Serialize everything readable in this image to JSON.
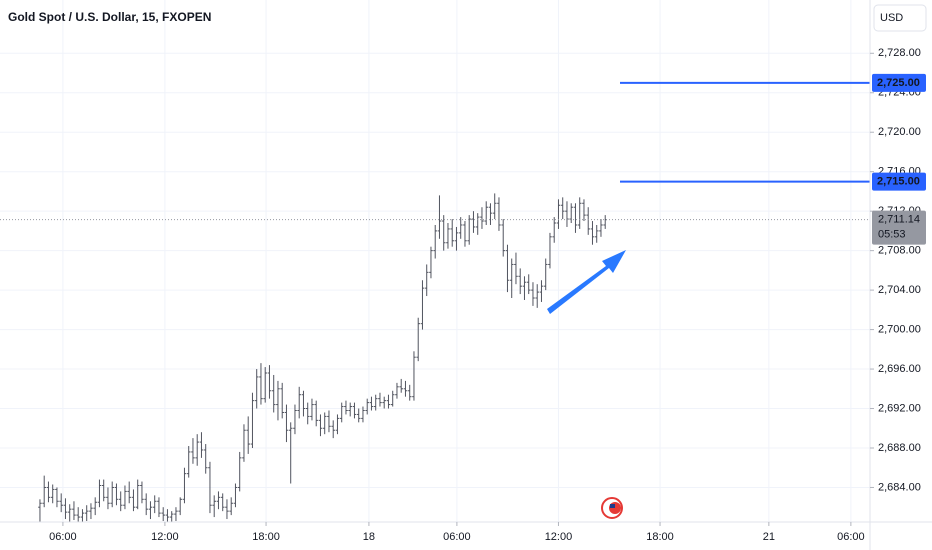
{
  "chart_data": {
    "type": "ohlc",
    "title": "Gold Spot / U.S. Dollar, 15, FXOPEN",
    "currency": "USD",
    "color": "#50535e",
    "grid": true,
    "ylim": [
      2680.5,
      2733.4
    ],
    "yticks": [
      {
        "value": 2684,
        "label": "2,684.00"
      },
      {
        "value": 2688,
        "label": "2,688.00"
      },
      {
        "value": 2692,
        "label": "2,692.00"
      },
      {
        "value": 2696,
        "label": "2,696.00"
      },
      {
        "value": 2700,
        "label": "2,700.00"
      },
      {
        "value": 2704,
        "label": "2,704.00"
      },
      {
        "value": 2708,
        "label": "2,708.00"
      },
      {
        "value": 2712,
        "label": "2,712.00"
      },
      {
        "value": 2716,
        "label": "2,716.00"
      },
      {
        "value": 2720,
        "label": "2,720.00"
      },
      {
        "value": 2724,
        "label": "2,724.00"
      },
      {
        "value": 2728,
        "label": "2,728.00"
      }
    ],
    "xlim": [
      -9.4,
      195.3
    ],
    "xticks": [
      {
        "value": 5.4,
        "label": "06:00"
      },
      {
        "value": 29.4,
        "label": "12:00"
      },
      {
        "value": 53.2,
        "label": "18:00"
      },
      {
        "value": 77.4,
        "label": "18"
      },
      {
        "value": 98.1,
        "label": "06:00"
      },
      {
        "value": 122,
        "label": "12:00"
      },
      {
        "value": 145.9,
        "label": "18:00"
      },
      {
        "value": 171.5,
        "label": "21"
      },
      {
        "value": 190.8,
        "label": "06:00"
      }
    ],
    "hlines": [
      {
        "value": 2725,
        "label": "2,725.00",
        "color": "#2962ff"
      },
      {
        "value": 2715,
        "label": "2,715.00",
        "color": "#2962ff"
      }
    ],
    "last_price": {
      "value": 2711.14,
      "label": "2,711.14",
      "countdown": "05:53"
    },
    "ohlc": [
      [
        2682.0,
        2682.8,
        2680.5,
        2682.4
      ],
      [
        2682.4,
        2685.2,
        2682.0,
        2684.0
      ],
      [
        2684.0,
        2684.6,
        2682.5,
        2683.0
      ],
      [
        2683.0,
        2684.3,
        2682.4,
        2683.8
      ],
      [
        2683.8,
        2684.0,
        2682.0,
        2682.6
      ],
      [
        2682.6,
        2683.4,
        2681.5,
        2682.2
      ],
      [
        2682.2,
        2682.9,
        2680.8,
        2681.5
      ],
      [
        2681.5,
        2682.3,
        2680.5,
        2681.8
      ],
      [
        2681.8,
        2682.6,
        2680.7,
        2681.2
      ],
      [
        2681.2,
        2682.0,
        2680.5,
        2681.0
      ],
      [
        2681.0,
        2681.8,
        2680.5,
        2681.4
      ],
      [
        2681.4,
        2682.2,
        2680.6,
        2681.6
      ],
      [
        2681.6,
        2682.4,
        2680.8,
        2681.9
      ],
      [
        2681.9,
        2683.0,
        2681.2,
        2682.5
      ],
      [
        2682.5,
        2684.8,
        2682.0,
        2684.2
      ],
      [
        2684.2,
        2684.8,
        2682.6,
        2683.0
      ],
      [
        2683.0,
        2684.0,
        2681.8,
        2682.4
      ],
      [
        2682.4,
        2684.6,
        2682.0,
        2684.0
      ],
      [
        2684.0,
        2684.4,
        2682.2,
        2682.8
      ],
      [
        2682.8,
        2683.6,
        2681.6,
        2682.2
      ],
      [
        2682.2,
        2684.2,
        2681.8,
        2683.6
      ],
      [
        2683.6,
        2684.6,
        2682.4,
        2683.0
      ],
      [
        2683.0,
        2683.8,
        2681.6,
        2682.0
      ],
      [
        2682.0,
        2684.8,
        2681.8,
        2684.2
      ],
      [
        2684.2,
        2684.6,
        2682.4,
        2682.8
      ],
      [
        2682.8,
        2683.4,
        2681.2,
        2681.8
      ],
      [
        2681.8,
        2682.6,
        2680.8,
        2682.0
      ],
      [
        2682.0,
        2683.2,
        2681.4,
        2682.6
      ],
      [
        2682.6,
        2683.0,
        2681.0,
        2681.4
      ],
      [
        2681.4,
        2682.0,
        2680.6,
        2681.2
      ],
      [
        2681.2,
        2681.8,
        2680.5,
        2681.0
      ],
      [
        2681.0,
        2681.6,
        2680.5,
        2681.3
      ],
      [
        2681.3,
        2682.0,
        2680.6,
        2681.6
      ],
      [
        2681.6,
        2683.0,
        2681.2,
        2682.8
      ],
      [
        2682.8,
        2686.0,
        2682.4,
        2685.4
      ],
      [
        2685.4,
        2688.2,
        2685.0,
        2687.6
      ],
      [
        2687.6,
        2689.0,
        2686.4,
        2687.0
      ],
      [
        2687.0,
        2689.4,
        2686.2,
        2688.6
      ],
      [
        2688.6,
        2689.6,
        2687.0,
        2687.8
      ],
      [
        2687.8,
        2688.4,
        2685.4,
        2686.0
      ],
      [
        2686.0,
        2686.6,
        2681.4,
        2682.2
      ],
      [
        2682.2,
        2683.2,
        2681.0,
        2682.6
      ],
      [
        2682.6,
        2683.6,
        2681.8,
        2683.0
      ],
      [
        2683.0,
        2683.4,
        2681.6,
        2682.0
      ],
      [
        2682.0,
        2682.8,
        2680.8,
        2681.6
      ],
      [
        2681.6,
        2683.0,
        2681.2,
        2682.4
      ],
      [
        2682.4,
        2684.4,
        2682.0,
        2684.0
      ],
      [
        2684.0,
        2687.6,
        2683.6,
        2687.0
      ],
      [
        2687.0,
        2690.4,
        2686.6,
        2689.8
      ],
      [
        2689.8,
        2691.2,
        2687.4,
        2688.4
      ],
      [
        2688.4,
        2693.6,
        2688.0,
        2692.8
      ],
      [
        2692.8,
        2696.0,
        2692.0,
        2695.2
      ],
      [
        2695.2,
        2696.6,
        2692.4,
        2693.0
      ],
      [
        2693.0,
        2696.2,
        2692.6,
        2695.6
      ],
      [
        2695.6,
        2696.4,
        2693.0,
        2693.8
      ],
      [
        2693.8,
        2695.4,
        2691.6,
        2692.4
      ],
      [
        2692.4,
        2694.8,
        2690.8,
        2694.0
      ],
      [
        2694.0,
        2694.6,
        2691.0,
        2691.6
      ],
      [
        2691.6,
        2692.4,
        2688.6,
        2689.8
      ],
      [
        2689.8,
        2690.6,
        2684.4,
        2690.0
      ],
      [
        2690.0,
        2692.4,
        2689.4,
        2691.8
      ],
      [
        2691.8,
        2694.2,
        2691.0,
        2693.4
      ],
      [
        2693.4,
        2693.8,
        2691.2,
        2692.0
      ],
      [
        2692.0,
        2692.6,
        2690.4,
        2691.2
      ],
      [
        2691.2,
        2693.0,
        2690.8,
        2692.4
      ],
      [
        2692.4,
        2692.8,
        2690.2,
        2690.8
      ],
      [
        2690.8,
        2691.4,
        2689.2,
        2690.0
      ],
      [
        2690.0,
        2691.6,
        2689.4,
        2691.2
      ],
      [
        2691.2,
        2691.8,
        2689.6,
        2690.2
      ],
      [
        2690.2,
        2690.8,
        2689.0,
        2689.8
      ],
      [
        2689.8,
        2691.4,
        2689.4,
        2691.0
      ],
      [
        2691.0,
        2692.6,
        2690.6,
        2692.2
      ],
      [
        2692.2,
        2692.8,
        2691.4,
        2691.8
      ],
      [
        2691.8,
        2692.6,
        2691.2,
        2692.2
      ],
      [
        2692.2,
        2692.6,
        2691.0,
        2691.4
      ],
      [
        2691.4,
        2692.0,
        2690.6,
        2691.0
      ],
      [
        2691.0,
        2692.2,
        2690.6,
        2691.8
      ],
      [
        2691.8,
        2693.0,
        2691.4,
        2692.6
      ],
      [
        2692.6,
        2693.2,
        2691.8,
        2692.2
      ],
      [
        2692.2,
        2693.4,
        2691.8,
        2693.0
      ],
      [
        2693.0,
        2693.6,
        2692.2,
        2692.6
      ],
      [
        2692.6,
        2693.2,
        2692.0,
        2692.8
      ],
      [
        2692.8,
        2693.4,
        2692.0,
        2692.4
      ],
      [
        2692.4,
        2693.8,
        2692.2,
        2693.4
      ],
      [
        2693.4,
        2694.6,
        2693.0,
        2694.2
      ],
      [
        2694.2,
        2695.0,
        2693.6,
        2694.0
      ],
      [
        2694.0,
        2694.8,
        2693.2,
        2693.8
      ],
      [
        2693.8,
        2694.4,
        2692.8,
        2693.2
      ],
      [
        2693.2,
        2697.8,
        2692.8,
        2697.2
      ],
      [
        2697.2,
        2701.2,
        2696.8,
        2700.6
      ],
      [
        2700.6,
        2705.0,
        2700.0,
        2704.2
      ],
      [
        2704.2,
        2706.6,
        2703.4,
        2705.8
      ],
      [
        2705.8,
        2708.4,
        2705.2,
        2708.0
      ],
      [
        2708.0,
        2710.6,
        2707.2,
        2710.0
      ],
      [
        2710.0,
        2713.6,
        2709.2,
        2711.0
      ],
      [
        2711.0,
        2711.6,
        2708.0,
        2708.8
      ],
      [
        2708.8,
        2710.8,
        2708.2,
        2710.2
      ],
      [
        2710.2,
        2711.2,
        2708.4,
        2709.0
      ],
      [
        2709.0,
        2710.4,
        2708.0,
        2709.8
      ],
      [
        2709.8,
        2711.4,
        2709.2,
        2710.6
      ],
      [
        2710.6,
        2711.0,
        2708.4,
        2709.0
      ],
      [
        2709.0,
        2711.6,
        2708.6,
        2711.2
      ],
      [
        2711.2,
        2712.0,
        2709.8,
        2710.4
      ],
      [
        2710.4,
        2711.8,
        2709.6,
        2711.4
      ],
      [
        2711.4,
        2712.4,
        2710.2,
        2711.0
      ],
      [
        2711.0,
        2713.0,
        2710.6,
        2712.4
      ],
      [
        2712.4,
        2712.8,
        2710.6,
        2711.8
      ],
      [
        2711.8,
        2713.8,
        2711.2,
        2712.8
      ],
      [
        2712.8,
        2713.4,
        2710.0,
        2710.6
      ],
      [
        2710.6,
        2711.2,
        2707.4,
        2708.0
      ],
      [
        2708.0,
        2708.6,
        2703.8,
        2705.0
      ],
      [
        2705.0,
        2707.2,
        2703.2,
        2706.6
      ],
      [
        2706.6,
        2707.8,
        2704.6,
        2705.4
      ],
      [
        2705.4,
        2706.2,
        2703.6,
        2704.4
      ],
      [
        2704.4,
        2705.4,
        2703.0,
        2704.8
      ],
      [
        2704.8,
        2705.6,
        2703.6,
        2704.0
      ],
      [
        2704.0,
        2704.8,
        2702.4,
        2703.2
      ],
      [
        2703.2,
        2704.6,
        2702.2,
        2703.8
      ],
      [
        2703.8,
        2705.0,
        2702.8,
        2704.4
      ],
      [
        2704.4,
        2707.2,
        2704.0,
        2706.6
      ],
      [
        2706.6,
        2709.8,
        2706.2,
        2709.4
      ],
      [
        2709.4,
        2711.4,
        2708.8,
        2710.8
      ],
      [
        2710.8,
        2713.2,
        2710.2,
        2712.6
      ],
      [
        2712.6,
        2713.4,
        2711.2,
        2712.0
      ],
      [
        2712.0,
        2713.0,
        2710.4,
        2711.2
      ],
      [
        2711.2,
        2712.8,
        2710.8,
        2712.4
      ],
      [
        2712.4,
        2712.8,
        2709.8,
        2710.6
      ],
      [
        2710.6,
        2713.4,
        2710.2,
        2712.8
      ],
      [
        2712.8,
        2713.2,
        2711.0,
        2711.6
      ],
      [
        2711.6,
        2712.4,
        2709.6,
        2710.2
      ],
      [
        2710.2,
        2711.0,
        2708.6,
        2709.4
      ],
      [
        2709.4,
        2710.6,
        2708.8,
        2710.0
      ],
      [
        2710.0,
        2711.2,
        2709.4,
        2710.6
      ],
      [
        2710.6,
        2711.6,
        2710.2,
        2711.14
      ]
    ]
  }
}
